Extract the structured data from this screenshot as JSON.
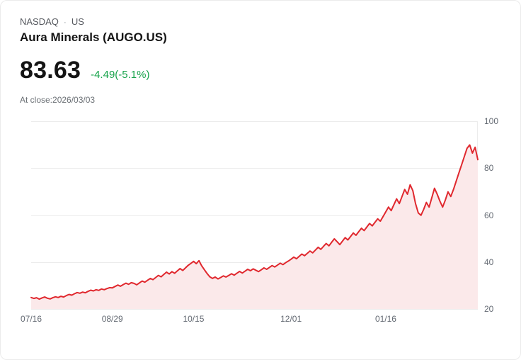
{
  "header": {
    "exchange": "NASDAQ",
    "separator": "·",
    "region": "US",
    "title": "Aura Minerals (AUGO.US)",
    "price": "83.63",
    "change": "-4.49(-5.1%)",
    "close_note": "At close:2026/03/03"
  },
  "colors": {
    "line": "#e0282e",
    "fill": "#fbe9ea",
    "change_positive": "#16a34a",
    "grid": "#ececec",
    "axis_text": "#646a73"
  },
  "chart_data": {
    "type": "line",
    "title": "Aura Minerals (AUGO.US) share price",
    "xlabel": "",
    "ylabel": "",
    "ylim": [
      20,
      100
    ],
    "grid": true,
    "y_ticks": [
      20,
      40,
      60,
      80,
      100
    ],
    "x_tick_labels": [
      "07/16",
      "08/29",
      "10/15",
      "12/01",
      "01/16"
    ],
    "x_tick_indices": [
      0,
      30,
      60,
      96,
      131
    ],
    "series": [
      {
        "name": "AUGO.US",
        "values": [
          24.9,
          24.5,
          24.8,
          24.2,
          24.7,
          25.1,
          24.6,
          24.3,
          24.8,
          25.2,
          24.9,
          25.4,
          25.1,
          25.7,
          26.2,
          25.9,
          26.5,
          27.0,
          26.7,
          27.2,
          26.9,
          27.5,
          28.0,
          27.7,
          28.2,
          27.9,
          28.5,
          28.2,
          28.7,
          29.1,
          29.0,
          29.6,
          30.2,
          29.7,
          30.4,
          31.0,
          30.5,
          31.2,
          30.9,
          30.3,
          31.1,
          31.9,
          31.4,
          32.2,
          33.0,
          32.5,
          33.4,
          34.3,
          33.7,
          34.7,
          35.7,
          34.9,
          35.9,
          35.2,
          36.2,
          37.2,
          36.4,
          37.5,
          38.6,
          39.4,
          40.3,
          39.3,
          40.6,
          38.4,
          36.7,
          35.1,
          33.7,
          33.0,
          33.6,
          32.8,
          33.4,
          34.1,
          33.6,
          34.3,
          35.0,
          34.4,
          35.2,
          36.0,
          35.3,
          36.1,
          36.9,
          36.3,
          37.1,
          36.5,
          35.9,
          36.7,
          37.5,
          36.9,
          37.7,
          38.5,
          37.9,
          38.7,
          39.5,
          38.9,
          39.7,
          40.4,
          41.2,
          42.1,
          41.4,
          42.4,
          43.4,
          42.7,
          43.7,
          44.7,
          43.9,
          45.1,
          46.3,
          45.4,
          46.7,
          47.9,
          46.9,
          48.4,
          49.9,
          48.7,
          47.4,
          48.9,
          50.4,
          49.4,
          50.9,
          52.4,
          51.4,
          52.9,
          54.4,
          53.4,
          54.9,
          56.4,
          55.4,
          56.9,
          58.4,
          57.4,
          59.4,
          61.4,
          63.4,
          61.9,
          64.4,
          66.9,
          64.9,
          67.9,
          70.9,
          68.9,
          72.9,
          70.4,
          64.9,
          60.9,
          59.9,
          62.4,
          65.4,
          63.4,
          67.4,
          71.4,
          68.9,
          65.9,
          63.4,
          66.4,
          69.9,
          67.9,
          70.9,
          74.4,
          77.9,
          81.4,
          84.9,
          88.4,
          89.9,
          86.4,
          88.9,
          83.6
        ]
      }
    ]
  }
}
